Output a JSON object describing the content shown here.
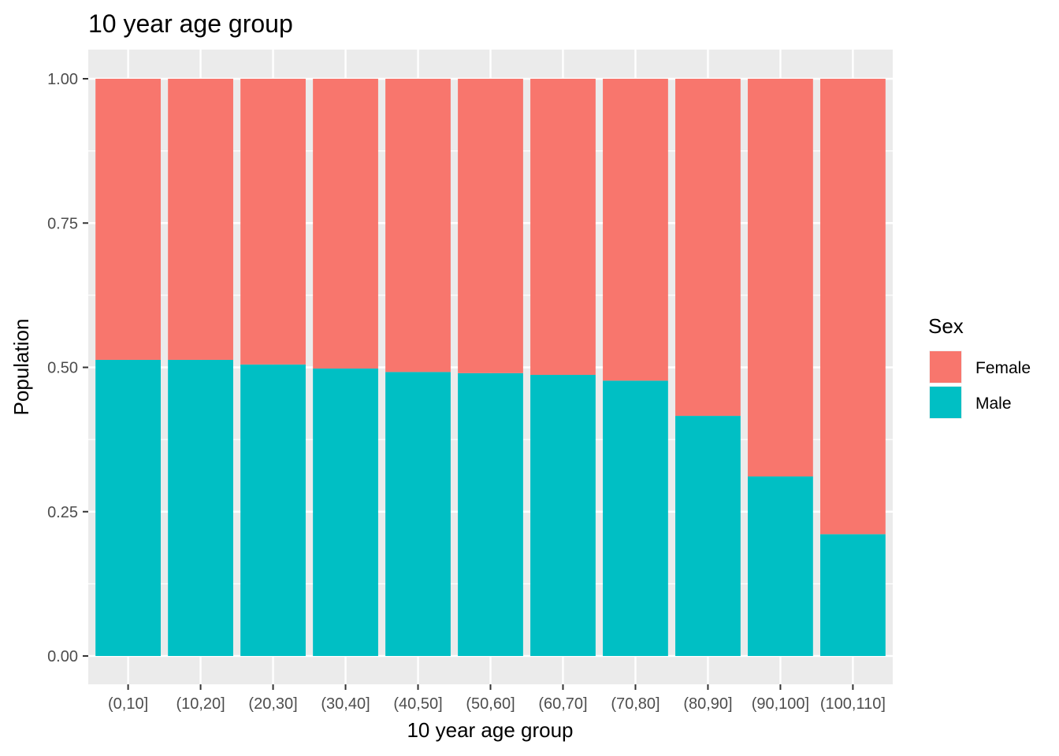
{
  "chart_data": {
    "type": "bar",
    "stacked": true,
    "title": "10 year age group",
    "xlabel": "10 year age group",
    "ylabel": "Population",
    "ylim": [
      0,
      1
    ],
    "yticks": [
      "0.00",
      "0.25",
      "0.50",
      "0.75",
      "1.00"
    ],
    "ytick_values": [
      0,
      0.25,
      0.5,
      0.75,
      1.0
    ],
    "grid": true,
    "legend": {
      "title": "Sex",
      "position": "right"
    },
    "categories": [
      "(0,10]",
      "(10,20]",
      "(20,30]",
      "(30,40]",
      "(40,50]",
      "(50,60]",
      "(60,70]",
      "(70,80]",
      "(80,90]",
      "(90,100]",
      "(100,110]"
    ],
    "series": [
      {
        "name": "Male",
        "color": "#00BFC4",
        "values": [
          0.513,
          0.513,
          0.505,
          0.498,
          0.492,
          0.49,
          0.487,
          0.477,
          0.416,
          0.311,
          0.211
        ]
      },
      {
        "name": "Female",
        "color": "#F8766D",
        "values": [
          0.487,
          0.487,
          0.495,
          0.502,
          0.508,
          0.51,
          0.513,
          0.523,
          0.584,
          0.689,
          0.789
        ]
      }
    ],
    "legend_order": [
      "Female",
      "Male"
    ]
  }
}
